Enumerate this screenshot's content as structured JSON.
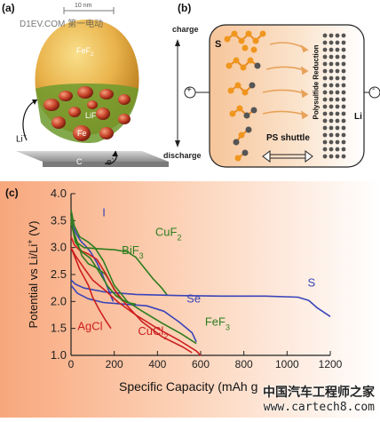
{
  "panel_a": {
    "label": "(a)",
    "scale_bar": "10 nm",
    "core_label": "FeF",
    "core_label_sub": "2",
    "lif_label": "LiF",
    "fe_label": "Fe",
    "li_plus": "Li",
    "li_plus_sup": "+",
    "c_label": "C",
    "e_minus": "e",
    "e_minus_sup": "-"
  },
  "panel_b": {
    "label": "(b)",
    "charge": "charge",
    "discharge": "discharge",
    "s_label": "S",
    "li_label": "Li",
    "polysulfide": "Polysulfide Reduction",
    "ps_shuttle": "PS shuttle",
    "plus": "+",
    "minus": "-"
  },
  "watermark_top": "D1EV.COM 第一电动",
  "watermark_bottom": {
    "cn": "中国汽车工程师之家",
    "url": "www.cartech8.com"
  },
  "chart_data": {
    "type": "line",
    "panel_label": "(c)",
    "xlabel": "Specific Capacity (mAh g",
    "ylabel": "Potential vs Li/Li",
    "ylabel_sup": "+",
    "ylabel_tail": " (V)",
    "xlim": [
      0,
      1200
    ],
    "ylim": [
      1.0,
      4.0
    ],
    "x_ticks": [
      "0",
      "200",
      "400",
      "600",
      "800",
      "1000",
      "1200"
    ],
    "y_ticks": [
      "1.0",
      "1.5",
      "2.0",
      "2.5",
      "3.0",
      "3.5",
      "4.0"
    ],
    "grid": false,
    "series": [
      {
        "name": "I",
        "color": "#3a44b8",
        "points": [
          [
            0,
            3.55
          ],
          [
            10,
            3.38
          ],
          [
            25,
            3.25
          ],
          [
            45,
            3.12
          ],
          [
            70,
            3.02
          ],
          [
            90,
            2.92
          ],
          [
            120,
            2.72
          ],
          [
            150,
            2.45
          ],
          [
            180,
            2.15
          ],
          [
            195,
            2.0
          ]
        ]
      },
      {
        "name": "CuF2",
        "label_sub": "2",
        "color": "#2e7d1e",
        "points": [
          [
            0,
            3.6
          ],
          [
            10,
            3.3
          ],
          [
            25,
            3.1
          ],
          [
            60,
            3.0
          ],
          [
            120,
            2.98
          ],
          [
            200,
            2.96
          ],
          [
            260,
            2.92
          ],
          [
            300,
            2.82
          ],
          [
            340,
            2.62
          ],
          [
            380,
            2.42
          ],
          [
            420,
            2.25
          ],
          [
            445,
            2.12
          ]
        ]
      },
      {
        "name": "BiF3",
        "label_sub": "3",
        "color": "#2e7d1e",
        "points": [
          [
            0,
            3.45
          ],
          [
            20,
            3.2
          ],
          [
            50,
            2.85
          ],
          [
            80,
            2.7
          ],
          [
            120,
            2.62
          ],
          [
            160,
            2.5
          ],
          [
            190,
            2.3
          ],
          [
            220,
            2.1
          ],
          [
            240,
            2.0
          ]
        ]
      },
      {
        "name": "S",
        "color": "#3a44b8",
        "points": [
          [
            0,
            2.4
          ],
          [
            20,
            2.32
          ],
          [
            60,
            2.25
          ],
          [
            150,
            2.18
          ],
          [
            300,
            2.13
          ],
          [
            500,
            2.11
          ],
          [
            700,
            2.1
          ],
          [
            900,
            2.1
          ],
          [
            1050,
            2.08
          ],
          [
            1100,
            2.02
          ],
          [
            1140,
            1.88
          ],
          [
            1200,
            1.72
          ]
        ]
      },
      {
        "name": "Se",
        "color": "#3a44b8",
        "points": [
          [
            0,
            2.3
          ],
          [
            30,
            2.15
          ],
          [
            80,
            2.05
          ],
          [
            150,
            1.98
          ],
          [
            250,
            1.95
          ],
          [
            350,
            1.92
          ],
          [
            430,
            1.82
          ],
          [
            500,
            1.62
          ],
          [
            560,
            1.42
          ],
          [
            580,
            1.25
          ]
        ]
      },
      {
        "name": "FeF3",
        "label_sub": "3",
        "color": "#2e7d1e",
        "points": [
          [
            0,
            3.7
          ],
          [
            15,
            3.4
          ],
          [
            40,
            3.2
          ],
          [
            80,
            3.1
          ],
          [
            110,
            3.0
          ],
          [
            150,
            2.75
          ],
          [
            200,
            2.3
          ],
          [
            260,
            2.0
          ],
          [
            330,
            1.82
          ],
          [
            420,
            1.6
          ],
          [
            510,
            1.4
          ],
          [
            580,
            1.22
          ]
        ]
      },
      {
        "name": "AgCl",
        "color": "#cc1f1f",
        "points": [
          [
            0,
            3.0
          ],
          [
            15,
            2.85
          ],
          [
            40,
            2.6
          ],
          [
            60,
            2.45
          ],
          [
            80,
            2.3
          ],
          [
            100,
            2.08
          ],
          [
            130,
            1.85
          ],
          [
            160,
            1.65
          ],
          [
            185,
            1.5
          ]
        ]
      },
      {
        "name": "CuCl2",
        "label_sub": "2",
        "color": "#cc1f1f",
        "points": [
          [
            0,
            3.2
          ],
          [
            15,
            3.05
          ],
          [
            40,
            2.95
          ],
          [
            80,
            2.88
          ],
          [
            120,
            2.78
          ],
          [
            160,
            2.52
          ],
          [
            200,
            2.22
          ],
          [
            260,
            1.92
          ],
          [
            330,
            1.62
          ],
          [
            420,
            1.35
          ],
          [
            520,
            1.15
          ],
          [
            560,
            1.05
          ]
        ]
      },
      {
        "name": "",
        "color": "#cc1f1f",
        "points": [
          [
            0,
            3.0
          ],
          [
            20,
            2.85
          ],
          [
            60,
            2.62
          ],
          [
            100,
            2.4
          ],
          [
            160,
            2.2
          ],
          [
            220,
            1.98
          ],
          [
            300,
            1.75
          ],
          [
            400,
            1.5
          ],
          [
            500,
            1.28
          ],
          [
            580,
            1.08
          ],
          [
            600,
            1.0
          ]
        ]
      },
      {
        "name": "",
        "color": "#2e7d1e",
        "points": [
          [
            0,
            3.5
          ],
          [
            20,
            3.1
          ],
          [
            50,
            2.92
          ],
          [
            90,
            2.8
          ],
          [
            130,
            2.55
          ],
          [
            170,
            2.28
          ],
          [
            210,
            2.1
          ],
          [
            260,
            1.98
          ],
          [
            300,
            1.95
          ]
        ]
      }
    ],
    "labels": [
      {
        "text": "I",
        "x": 145,
        "y": 3.58,
        "color": "#3a44b8"
      },
      {
        "text": "CuF",
        "sub": "2",
        "x": 390,
        "y": 3.22,
        "color": "#2e7d1e"
      },
      {
        "text": "BiF",
        "sub": "3",
        "x": 235,
        "y": 2.88,
        "color": "#2e7d1e"
      },
      {
        "text": "S",
        "x": 1095,
        "y": 2.28,
        "color": "#3a44b8"
      },
      {
        "text": "Se",
        "x": 535,
        "y": 1.98,
        "color": "#3a44b8"
      },
      {
        "text": "FeF",
        "sub": "3",
        "x": 620,
        "y": 1.55,
        "color": "#2e7d1e"
      },
      {
        "text": "AgCl",
        "x": 30,
        "y": 1.47,
        "color": "#cc1f1f"
      },
      {
        "text": "CuCl",
        "sub": "2",
        "x": 310,
        "y": 1.38,
        "color": "#cc1f1f"
      }
    ]
  }
}
